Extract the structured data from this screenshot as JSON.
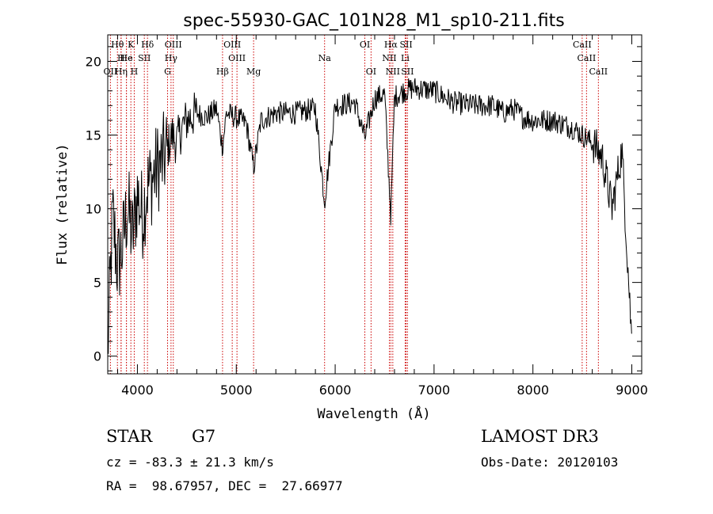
{
  "chart_data": {
    "type": "line",
    "title": "spec-55930-GAC_101N28_M1_sp10-211.fits",
    "xlabel": "Wavelength (Å)",
    "ylabel": "Flux (relative)",
    "xlim": [
      3700,
      9100
    ],
    "ylim": [
      -1.2,
      21.8
    ],
    "xticks": [
      4000,
      5000,
      6000,
      7000,
      8000,
      9000
    ],
    "xtick_labels": [
      "4000",
      "5000",
      "6000",
      "7000",
      "8000",
      "9000"
    ],
    "yticks": [
      0,
      5,
      10,
      15,
      20
    ],
    "ytick_labels": [
      "0",
      "5",
      "10",
      "15",
      "20"
    ],
    "grid": false,
    "series": [
      {
        "name": "spectrum",
        "color": "#000000",
        "x": [
          3700,
          3750,
          3800,
          3850,
          3900,
          3950,
          4000,
          4050,
          4100,
          4150,
          4200,
          4250,
          4300,
          4350,
          4400,
          4450,
          4500,
          4600,
          4700,
          4800,
          4861,
          4900,
          5000,
          5100,
          5175,
          5250,
          5400,
          5600,
          5800,
          5893,
          6000,
          6200,
          6300,
          6400,
          6500,
          6563,
          6600,
          6700,
          6800,
          7000,
          7200,
          7400,
          7600,
          7700,
          7800,
          7900,
          8000,
          8200,
          8400,
          8500,
          8600,
          8700,
          8800,
          8900,
          9000
        ],
        "y": [
          0.3,
          9.5,
          6.0,
          7.5,
          10.2,
          8.0,
          11.0,
          9.5,
          11.5,
          12.0,
          12.8,
          13.2,
          14.0,
          15.0,
          14.5,
          15.5,
          16.0,
          16.5,
          16.2,
          16.8,
          14.2,
          16.5,
          16.2,
          15.8,
          12.8,
          16.0,
          16.5,
          16.5,
          16.8,
          10.5,
          17.0,
          17.2,
          14.8,
          17.5,
          17.8,
          9.5,
          17.6,
          18.0,
          18.2,
          18.0,
          17.2,
          17.0,
          17.0,
          16.5,
          16.8,
          16.2,
          16.0,
          16.0,
          15.5,
          15.0,
          14.5,
          13.5,
          10.0,
          14.0,
          1.0
        ]
      }
    ],
    "lines": [
      {
        "label": "Hθ",
        "wl": 3798,
        "row": 1
      },
      {
        "label": "K",
        "wl": 3934,
        "row": 1
      },
      {
        "label": "Hδ",
        "wl": 4102,
        "row": 1
      },
      {
        "label": "OIII",
        "wl": 4363,
        "row": 1
      },
      {
        "label": "OIII",
        "wl": 4959,
        "row": 1
      },
      {
        "label": "OI",
        "wl": 6300,
        "row": 1
      },
      {
        "label": "Hα",
        "wl": 6563,
        "row": 1
      },
      {
        "label": "SII",
        "wl": 6717,
        "row": 1
      },
      {
        "label": "CaII",
        "wl": 8498,
        "row": 1
      },
      {
        "label": "He",
        "wl": 3889,
        "row": 2
      },
      {
        "label": "H",
        "wl": 3835,
        "row": 2
      },
      {
        "label": "He",
        "wl": 3889,
        "row": 2
      },
      {
        "label": "SII",
        "wl": 4070,
        "row": 2
      },
      {
        "label": "Hγ",
        "wl": 4340,
        "row": 2
      },
      {
        "label": "OIII",
        "wl": 5007,
        "row": 2
      },
      {
        "label": "Na",
        "wl": 5893,
        "row": 2
      },
      {
        "label": "NII",
        "wl": 6548,
        "row": 2
      },
      {
        "label": "Li",
        "wl": 6708,
        "row": 2
      },
      {
        "label": "CaII",
        "wl": 8542,
        "row": 2
      },
      {
        "label": "OII",
        "wl": 3727,
        "row": 3
      },
      {
        "label": "Hη",
        "wl": 3835,
        "row": 3
      },
      {
        "label": "H",
        "wl": 3968,
        "row": 3
      },
      {
        "label": "G",
        "wl": 4305,
        "row": 3
      },
      {
        "label": "Hβ",
        "wl": 4861,
        "row": 3
      },
      {
        "label": "Mg",
        "wl": 5175,
        "row": 3
      },
      {
        "label": "OI",
        "wl": 6363,
        "row": 3
      },
      {
        "label": "NII",
        "wl": 6583,
        "row": 3
      },
      {
        "label": "SII",
        "wl": 6731,
        "row": 3
      },
      {
        "label": "CaII",
        "wl": 8662,
        "row": 3
      }
    ],
    "line_color": "#cc0000"
  },
  "info": {
    "object_class": "STAR",
    "subclass": "G7",
    "survey": "LAMOST DR3",
    "cz": "cz = -83.3 ± 21.3 km/s",
    "obs_date": "Obs-Date: 20120103",
    "coords": "RA =  98.67957, DEC =  27.66977"
  }
}
